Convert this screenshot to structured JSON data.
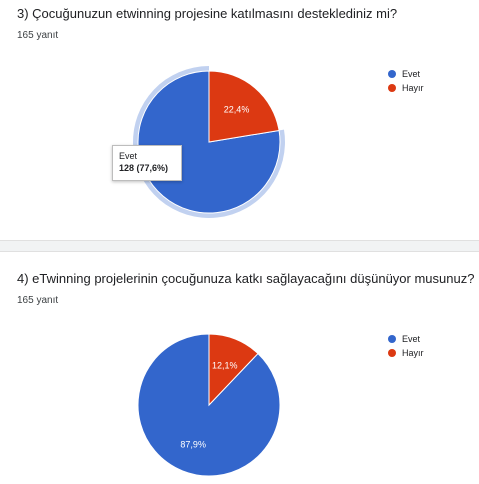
{
  "chart_data": [
    {
      "type": "pie",
      "title": "3) Çocuğunuzun etwinning projesine katılmasını desteklediniz mi?",
      "subtitle": "165 yanıt",
      "slices": [
        {
          "label": "Evet",
          "value": 77.6,
          "count": 128,
          "display": "77,6%",
          "color": "#3366cc"
        },
        {
          "label": "Hayır",
          "value": 22.4,
          "display": "22,4%",
          "color": "#dc3912"
        }
      ],
      "highlighted": "Evet",
      "tooltip": {
        "label": "Evet",
        "value": "128 (77,6%)"
      },
      "legend_position": "right"
    },
    {
      "type": "pie",
      "title": "4) eTwinning projelerinin çocuğunuza katkı sağlayacağını düşünüyor musunuz?",
      "subtitle": "165 yanıt",
      "slices": [
        {
          "label": "Evet",
          "value": 87.9,
          "display": "87,9%",
          "color": "#3366cc"
        },
        {
          "label": "Hayır",
          "value": 12.1,
          "display": "12,1%",
          "color": "#dc3912"
        }
      ],
      "legend_position": "right"
    }
  ]
}
